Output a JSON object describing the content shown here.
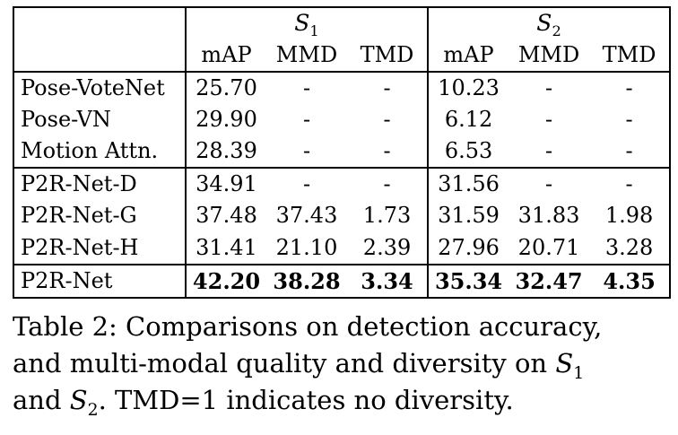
{
  "table": {
    "corner_label": "",
    "col_groups": [
      {
        "base": "S",
        "sub": "1"
      },
      {
        "base": "S",
        "sub": "2"
      }
    ],
    "sub_headers": [
      "mAP",
      "MMD",
      "TMD",
      "mAP",
      "MMD",
      "TMD"
    ],
    "groups": [
      {
        "rows": [
          {
            "label": "Pose-VoteNet",
            "values": [
              "25.70",
              "-",
              "-",
              "10.23",
              "-",
              "-"
            ]
          },
          {
            "label": "Pose-VN",
            "values": [
              "29.90",
              "-",
              "-",
              "6.12",
              "-",
              "-"
            ]
          },
          {
            "label": "Motion Attn.",
            "values": [
              "28.39",
              "-",
              "-",
              "6.53",
              "-",
              "-"
            ]
          }
        ]
      },
      {
        "rows": [
          {
            "label": "P2R-Net-D",
            "values": [
              "34.91",
              "-",
              "-",
              "31.56",
              "-",
              "-"
            ]
          },
          {
            "label": "P2R-Net-G",
            "values": [
              "37.48",
              "37.43",
              "1.73",
              "31.59",
              "31.83",
              "1.98"
            ]
          },
          {
            "label": "P2R-Net-H",
            "values": [
              "31.41",
              "21.10",
              "2.39",
              "27.96",
              "20.71",
              "3.28"
            ]
          }
        ]
      },
      {
        "rows": [
          {
            "label": "P2R-Net",
            "bold": true,
            "values": [
              "42.20",
              "38.28",
              "3.34",
              "35.34",
              "32.47",
              "4.35"
            ]
          }
        ]
      }
    ]
  },
  "caption": {
    "lines": [
      {
        "parts": [
          {
            "text": "Table 2: Comparisons on detection accuracy,"
          }
        ]
      },
      {
        "parts": [
          {
            "text": "and multi-modal quality and diversity on "
          },
          {
            "base": "S",
            "sub": "1"
          }
        ]
      },
      {
        "parts": [
          {
            "text": "and "
          },
          {
            "base": "S",
            "sub": "2"
          },
          {
            "text": ". TMD=1 indicates no diversity."
          }
        ]
      }
    ]
  }
}
